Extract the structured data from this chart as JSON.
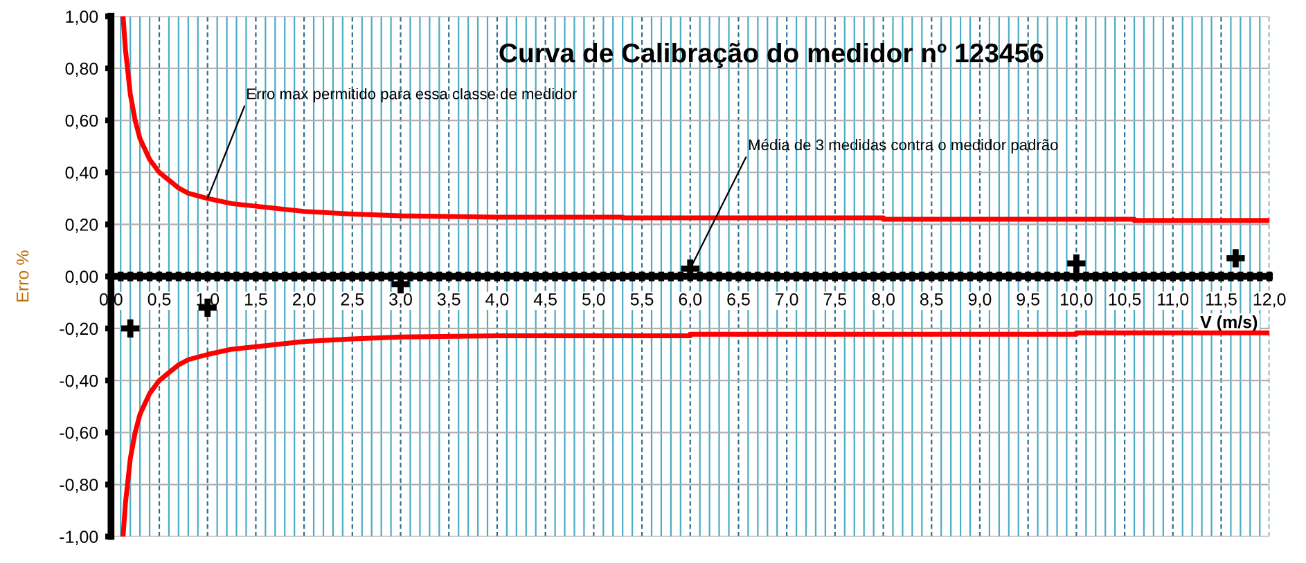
{
  "chart_data": {
    "type": "line",
    "title": "Curva de Calibração do medidor nº 123456",
    "xlabel": "V (m/s)",
    "ylabel": "Erro %",
    "xlim": [
      0,
      12
    ],
    "ylim": [
      -1,
      1
    ],
    "xticks": [
      {
        "value": 0,
        "label": "0,0"
      },
      {
        "value": 0.1,
        "label": null
      },
      {
        "value": 0.2,
        "label": null
      },
      {
        "value": 0.3,
        "label": null
      },
      {
        "value": 0.4,
        "label": null
      },
      {
        "value": 0.5,
        "label": "0,5"
      },
      {
        "value": 0.6,
        "label": null
      },
      {
        "value": 0.7,
        "label": null
      },
      {
        "value": 0.8,
        "label": null
      },
      {
        "value": 0.9,
        "label": null
      },
      {
        "value": 1,
        "label": "1,0"
      },
      {
        "value": 1.1,
        "label": null
      },
      {
        "value": 1.2,
        "label": null
      },
      {
        "value": 1.3,
        "label": null
      },
      {
        "value": 1.4,
        "label": null
      },
      {
        "value": 1.5,
        "label": "1,5"
      },
      {
        "value": 1.6,
        "label": null
      },
      {
        "value": 1.7,
        "label": null
      },
      {
        "value": 1.8,
        "label": null
      },
      {
        "value": 1.9,
        "label": null
      },
      {
        "value": 2,
        "label": "2,0"
      },
      {
        "value": 2.1,
        "label": null
      },
      {
        "value": 2.2,
        "label": null
      },
      {
        "value": 2.3,
        "label": null
      },
      {
        "value": 2.4,
        "label": null
      },
      {
        "value": 2.5,
        "label": "2,5"
      },
      {
        "value": 2.6,
        "label": null
      },
      {
        "value": 2.7,
        "label": null
      },
      {
        "value": 2.8,
        "label": null
      },
      {
        "value": 2.9,
        "label": null
      },
      {
        "value": 3,
        "label": "3,0"
      },
      {
        "value": 3.1,
        "label": null
      },
      {
        "value": 3.2,
        "label": null
      },
      {
        "value": 3.3,
        "label": null
      },
      {
        "value": 3.4,
        "label": null
      },
      {
        "value": 3.5,
        "label": "3,5"
      },
      {
        "value": 3.6,
        "label": null
      },
      {
        "value": 3.7,
        "label": null
      },
      {
        "value": 3.8,
        "label": null
      },
      {
        "value": 3.9,
        "label": null
      },
      {
        "value": 4,
        "label": "4,0"
      },
      {
        "value": 4.1,
        "label": null
      },
      {
        "value": 4.2,
        "label": null
      },
      {
        "value": 4.3,
        "label": null
      },
      {
        "value": 4.4,
        "label": null
      },
      {
        "value": 4.5,
        "label": "4,5"
      },
      {
        "value": 4.6,
        "label": null
      },
      {
        "value": 4.7,
        "label": null
      },
      {
        "value": 4.8,
        "label": null
      },
      {
        "value": 4.9,
        "label": null
      },
      {
        "value": 5,
        "label": "5,0"
      },
      {
        "value": 5.1,
        "label": null
      },
      {
        "value": 5.2,
        "label": null
      },
      {
        "value": 5.3,
        "label": null
      },
      {
        "value": 5.4,
        "label": null
      },
      {
        "value": 5.5,
        "label": "5,5"
      },
      {
        "value": 5.6,
        "label": null
      },
      {
        "value": 5.7,
        "label": null
      },
      {
        "value": 5.8,
        "label": null
      },
      {
        "value": 5.9,
        "label": null
      },
      {
        "value": 6,
        "label": "6,0"
      },
      {
        "value": 6.1,
        "label": null
      },
      {
        "value": 6.2,
        "label": null
      },
      {
        "value": 6.3,
        "label": null
      },
      {
        "value": 6.4,
        "label": null
      },
      {
        "value": 6.5,
        "label": "6,5"
      },
      {
        "value": 6.6,
        "label": null
      },
      {
        "value": 6.7,
        "label": null
      },
      {
        "value": 6.8,
        "label": null
      },
      {
        "value": 6.9,
        "label": null
      },
      {
        "value": 7,
        "label": "7,0"
      },
      {
        "value": 7.1,
        "label": null
      },
      {
        "value": 7.2,
        "label": null
      },
      {
        "value": 7.3,
        "label": null
      },
      {
        "value": 7.4,
        "label": null
      },
      {
        "value": 7.5,
        "label": "7,5"
      },
      {
        "value": 7.6,
        "label": null
      },
      {
        "value": 7.7,
        "label": null
      },
      {
        "value": 7.8,
        "label": null
      },
      {
        "value": 7.9,
        "label": null
      },
      {
        "value": 8,
        "label": "8,0"
      },
      {
        "value": 8.1,
        "label": null
      },
      {
        "value": 8.2,
        "label": null
      },
      {
        "value": 8.3,
        "label": null
      },
      {
        "value": 8.4,
        "label": null
      },
      {
        "value": 8.5,
        "label": "8,5"
      },
      {
        "value": 8.6,
        "label": null
      },
      {
        "value": 8.7,
        "label": null
      },
      {
        "value": 8.8,
        "label": null
      },
      {
        "value": 8.9,
        "label": null
      },
      {
        "value": 9,
        "label": "9,0"
      },
      {
        "value": 9.1,
        "label": null
      },
      {
        "value": 9.2,
        "label": null
      },
      {
        "value": 9.3,
        "label": null
      },
      {
        "value": 9.4,
        "label": null
      },
      {
        "value": 9.5,
        "label": "9,5"
      },
      {
        "value": 9.6,
        "label": null
      },
      {
        "value": 9.7,
        "label": null
      },
      {
        "value": 9.8,
        "label": null
      },
      {
        "value": 9.9,
        "label": null
      },
      {
        "value": 10,
        "label": "10,0"
      },
      {
        "value": 10.1,
        "label": null
      },
      {
        "value": 10.2,
        "label": null
      },
      {
        "value": 10.3,
        "label": null
      },
      {
        "value": 10.4,
        "label": null
      },
      {
        "value": 10.5,
        "label": "10,5"
      },
      {
        "value": 10.6,
        "label": null
      },
      {
        "value": 10.7,
        "label": null
      },
      {
        "value": 10.8,
        "label": null
      },
      {
        "value": 10.9,
        "label": null
      },
      {
        "value": 11,
        "label": "11,0"
      },
      {
        "value": 11.1,
        "label": null
      },
      {
        "value": 11.2,
        "label": null
      },
      {
        "value": 11.3,
        "label": null
      },
      {
        "value": 11.4,
        "label": null
      },
      {
        "value": 11.5,
        "label": "11,5"
      },
      {
        "value": 11.6,
        "label": null
      },
      {
        "value": 11.7,
        "label": null
      },
      {
        "value": 11.8,
        "label": null
      },
      {
        "value": 11.9,
        "label": null
      },
      {
        "value": 12,
        "label": "12,0"
      }
    ],
    "yticks": [
      {
        "value": -1,
        "label": "-1,00"
      },
      {
        "value": -0.8,
        "label": "-0,80"
      },
      {
        "value": -0.6,
        "label": "-0,60"
      },
      {
        "value": -0.4,
        "label": "-0,40"
      },
      {
        "value": -0.2,
        "label": "-0,20"
      },
      {
        "value": 0,
        "label": "0,00"
      },
      {
        "value": 0.2,
        "label": "0,20"
      },
      {
        "value": 0.4,
        "label": "0,40"
      },
      {
        "value": 0.6,
        "label": "0,60"
      },
      {
        "value": 0.8,
        "label": "0,80"
      },
      {
        "value": 1,
        "label": "1,00"
      }
    ],
    "grid": true,
    "legend": false,
    "series": [
      {
        "color": "#ff0000",
        "x": [
          0.125,
          0.15,
          0.2,
          0.25,
          0.3,
          0.4,
          0.5,
          0.6,
          0.7,
          0.8,
          1.0,
          1.25,
          1.5,
          2.0,
          2.5,
          3.0,
          4.0,
          5.3,
          5.3,
          8.0,
          8.0,
          10.6,
          10.6,
          12.0
        ],
        "values": [
          1.0,
          0.87,
          0.7,
          0.6,
          0.53,
          0.45,
          0.4,
          0.37,
          0.34,
          0.32,
          0.3,
          0.28,
          0.27,
          0.25,
          0.24,
          0.233,
          0.228,
          0.228,
          0.225,
          0.225,
          0.22,
          0.22,
          0.215,
          0.215
        ]
      },
      {
        "color": "#ff0000",
        "x": [
          0.125,
          0.15,
          0.2,
          0.25,
          0.3,
          0.4,
          0.5,
          0.6,
          0.7,
          0.8,
          1.0,
          1.25,
          1.5,
          2.0,
          2.5,
          3.0,
          4.0,
          6.0,
          6.0,
          10.0,
          10.0,
          12.0
        ],
        "values": [
          -1.0,
          -0.87,
          -0.7,
          -0.6,
          -0.53,
          -0.45,
          -0.4,
          -0.37,
          -0.34,
          -0.32,
          -0.3,
          -0.28,
          -0.27,
          -0.25,
          -0.24,
          -0.233,
          -0.228,
          -0.228,
          -0.222,
          -0.222,
          -0.217,
          -0.217
        ]
      },
      {
        "type": "scatter",
        "color": "#000000",
        "marker": "cross",
        "x": [
          0.2,
          1.0,
          3.0,
          6.0,
          10.0,
          11.65
        ],
        "values": [
          -0.2,
          -0.12,
          -0.03,
          0.03,
          0.05,
          0.07
        ]
      }
    ],
    "annotations": [
      {
        "text": "Erro max permitido para essa classe de medidor",
        "x": 1.0,
        "y": 0.3
      },
      {
        "text": "Média de 3 medidas contra o medidor padrão",
        "x": 6.0,
        "y": 0.03
      }
    ]
  }
}
